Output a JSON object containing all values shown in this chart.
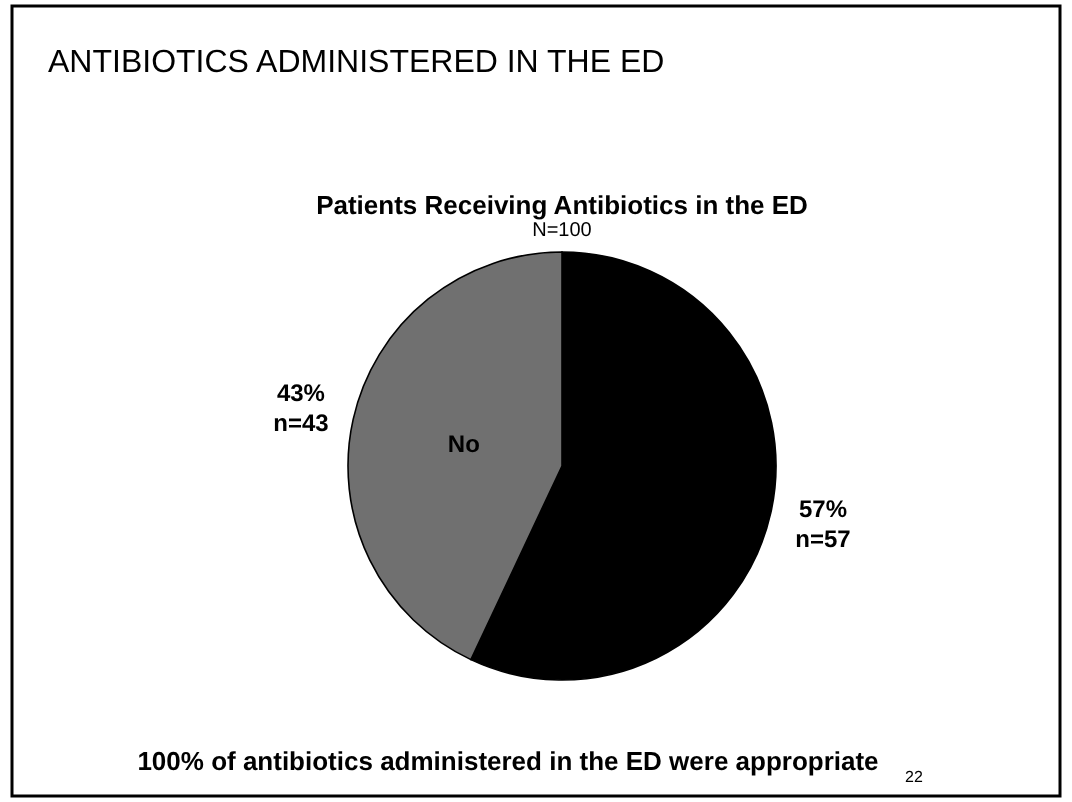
{
  "chart_data": {
    "type": "pie",
    "title": "ANTIBIOTICS ADMINISTERED IN THE ED",
    "subtitle": "Patients Receiving Antibiotics in the ED",
    "categories": [
      null,
      "No"
    ],
    "values": [
      57,
      43
    ],
    "colors": [
      "#000000",
      "#707070"
    ],
    "value_labels": [
      "57%\nn=57",
      "43%\nn=43"
    ],
    "annotations": [
      "N=100",
      "100% of antibiotics administered in the ED were appropriate",
      "22"
    ],
    "legend": false
  }
}
